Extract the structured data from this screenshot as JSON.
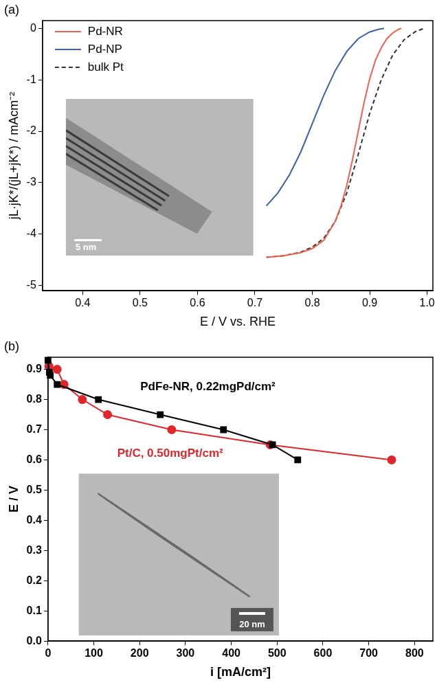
{
  "chart_data": [
    {
      "type": "line",
      "panel_label": "(a)",
      "x_label": "E / V vs. RHE",
      "y_label": "jL·jK*/(jL+jK*) / mAcm⁻²",
      "xlim": [
        0.33,
        1.01
      ],
      "xticks": [
        0.4,
        0.5,
        0.6,
        0.7,
        0.8,
        0.9,
        {
          "value": 1,
          "label": "1.0"
        }
      ],
      "ylim": [
        -5.1,
        0.15
      ],
      "yticks": [
        -5,
        -4,
        -3,
        -2,
        -1,
        0
      ],
      "grid": false,
      "legend": "upper left",
      "inset_scale_label": "5 nm",
      "series": [
        {
          "name": "Pd-NR",
          "color": "#f0604a",
          "line_style": "solid",
          "x": [
            0.72,
            0.75,
            0.78,
            0.8,
            0.82,
            0.84,
            0.85,
            0.86,
            0.87,
            0.88,
            0.89,
            0.9,
            0.91,
            0.92,
            0.93,
            0.94,
            0.95,
            0.955
          ],
          "values": [
            -4.45,
            -4.42,
            -4.36,
            -4.28,
            -4.12,
            -3.75,
            -3.45,
            -3.05,
            -2.55,
            -2.0,
            -1.45,
            -0.98,
            -0.62,
            -0.38,
            -0.2,
            -0.09,
            -0.02,
            0
          ]
        },
        {
          "name": "Pd-NP",
          "color": "#3a5fb0",
          "line_style": "solid",
          "x": [
            0.72,
            0.74,
            0.76,
            0.78,
            0.8,
            0.82,
            0.84,
            0.86,
            0.88,
            0.9,
            0.915,
            0.925
          ],
          "values": [
            -3.45,
            -3.2,
            -2.85,
            -2.4,
            -1.85,
            -1.3,
            -0.82,
            -0.45,
            -0.2,
            -0.07,
            -0.02,
            0
          ]
        },
        {
          "name": "bulk Pt",
          "color": "#333333",
          "line_style": "dashed",
          "x": [
            0.72,
            0.75,
            0.78,
            0.8,
            0.82,
            0.84,
            0.86,
            0.88,
            0.9,
            0.92,
            0.94,
            0.96,
            0.98,
            0.995
          ],
          "values": [
            -4.45,
            -4.42,
            -4.35,
            -4.25,
            -4.08,
            -3.75,
            -3.2,
            -2.45,
            -1.65,
            -1.0,
            -0.52,
            -0.22,
            -0.06,
            0
          ]
        }
      ]
    },
    {
      "type": "line",
      "panel_label": "(b)",
      "x_label": "i [mA/cm²]",
      "y_label": "E / V",
      "xlim": [
        0,
        840
      ],
      "xticks": [
        0,
        100,
        200,
        300,
        400,
        500,
        600,
        700,
        800
      ],
      "ylim": [
        0,
        0.94
      ],
      "yticks": [
        {
          "value": 0,
          "label": "0.0"
        },
        0.1,
        0.2,
        0.3,
        0.4,
        0.5,
        0.6,
        0.7,
        0.8,
        0.9
      ],
      "grid": false,
      "inset_scale_label": "20 nm",
      "series": [
        {
          "name": "PdFe-NR, 0.22mgPd/cm²",
          "color": "#000000",
          "marker": "square",
          "line_style": "solid",
          "x": [
            0,
            3,
            5,
            20,
            110,
            245,
            383,
            490,
            545
          ],
          "values": [
            0.93,
            0.89,
            0.88,
            0.85,
            0.8,
            0.75,
            0.7,
            0.65,
            0.6
          ]
        },
        {
          "name": "Pt/C, 0.50mgPt/cm²",
          "color": "#e0262b",
          "marker": "circle",
          "line_style": "solid",
          "x": [
            2,
            20,
            35,
            75,
            130,
            270,
            485,
            750
          ],
          "values": [
            0.91,
            0.9,
            0.85,
            0.8,
            0.75,
            0.7,
            0.65,
            0.6
          ]
        }
      ]
    }
  ]
}
